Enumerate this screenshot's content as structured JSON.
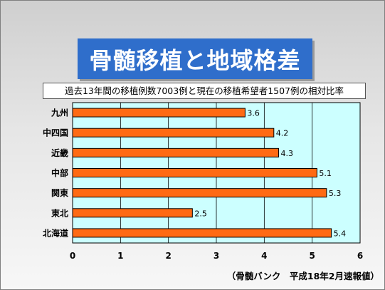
{
  "slide": {
    "title": "骨髄移植と地域格差",
    "subtitle": "過去13年間の移植例数7003例と現在の移植希望者1507例の相対比率",
    "source": "（骨髄バンク　平成18年2月速報値）"
  },
  "colors": {
    "title_background": "#2f6ecb",
    "plot_background": "#ccffff",
    "bar": "#ff6a13"
  },
  "chart_data": {
    "type": "bar",
    "orientation": "horizontal",
    "categories": [
      "九州",
      "中四国",
      "近畿",
      "中部",
      "関東",
      "東北",
      "北海道"
    ],
    "values": [
      3.6,
      4.2,
      4.3,
      5.1,
      5.3,
      2.5,
      5.4
    ],
    "data_labels": [
      "3.6",
      "4.2",
      "4.3",
      "5.1",
      "5.3",
      "2.5",
      "5.4"
    ],
    "xlim": [
      0,
      6
    ],
    "xticks": [
      "0",
      "1",
      "2",
      "3",
      "4",
      "5",
      "6"
    ],
    "grid": true,
    "legend": "none"
  }
}
